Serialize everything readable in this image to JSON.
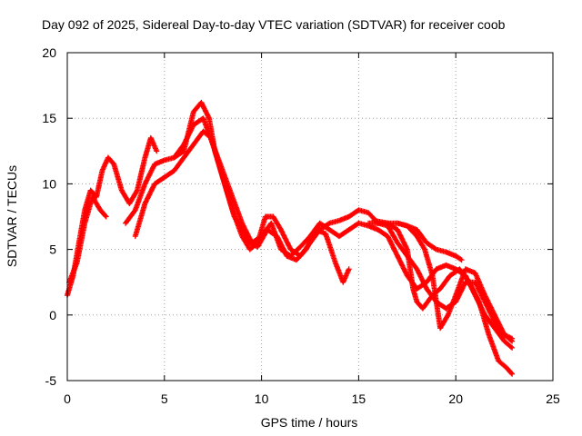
{
  "chart_data": {
    "type": "scatter",
    "title": "Day 092 of 2025, Sidereal Day-to-day VTEC variation (SDTVAR) for receiver coob",
    "xlabel": "GPS time / hours",
    "ylabel": "SDTVAR / TECUs",
    "xlim": [
      0,
      25
    ],
    "ylim": [
      -5,
      20
    ],
    "xticks": [
      0,
      5,
      10,
      15,
      20,
      25
    ],
    "yticks": [
      -5,
      0,
      5,
      10,
      15,
      20
    ],
    "grid": true,
    "marker": "+",
    "series_color": "#ff0000",
    "series": [
      {
        "name": "track-1",
        "points": [
          [
            0.0,
            1.5
          ],
          [
            0.3,
            3.0
          ],
          [
            0.6,
            5.5
          ],
          [
            0.9,
            8.0
          ],
          [
            1.2,
            9.5
          ],
          [
            1.5,
            9.0
          ],
          [
            1.8,
            11.0
          ],
          [
            2.1,
            12.0
          ],
          [
            2.4,
            11.5
          ],
          [
            2.8,
            9.5
          ],
          [
            3.2,
            8.5
          ],
          [
            3.6,
            9.5
          ],
          [
            4.0,
            12.0
          ],
          [
            4.3,
            13.5
          ],
          [
            4.6,
            12.5
          ]
        ]
      },
      {
        "name": "track-2",
        "points": [
          [
            0.1,
            2.5
          ],
          [
            0.5,
            4.0
          ],
          [
            0.9,
            7.0
          ],
          [
            1.3,
            9.0
          ],
          [
            1.7,
            8.0
          ],
          [
            2.0,
            7.5
          ]
        ]
      },
      {
        "name": "track-3",
        "points": [
          [
            3.0,
            7.0
          ],
          [
            3.5,
            8.0
          ],
          [
            4.0,
            10.0
          ],
          [
            4.5,
            11.5
          ],
          [
            5.0,
            11.8
          ],
          [
            5.5,
            12.0
          ],
          [
            6.0,
            12.5
          ],
          [
            6.5,
            15.5
          ],
          [
            6.9,
            16.2
          ],
          [
            7.3,
            15.0
          ],
          [
            7.6,
            12.5
          ],
          [
            8.0,
            10.5
          ],
          [
            8.5,
            8.0
          ],
          [
            9.0,
            6.0
          ],
          [
            9.4,
            5.0
          ],
          [
            9.8,
            5.5
          ],
          [
            10.2,
            7.5
          ],
          [
            10.6,
            7.5
          ],
          [
            11.0,
            6.5
          ],
          [
            11.5,
            5.0
          ],
          [
            12.0,
            4.5
          ],
          [
            12.5,
            5.5
          ],
          [
            13.0,
            6.5
          ],
          [
            13.5,
            7.0
          ],
          [
            14.0,
            7.2
          ],
          [
            14.5,
            7.5
          ],
          [
            15.0,
            8.0
          ],
          [
            15.5,
            7.8
          ],
          [
            16.0,
            7.0
          ],
          [
            16.5,
            7.0
          ],
          [
            17.0,
            7.0
          ],
          [
            17.5,
            6.8
          ],
          [
            18.0,
            6.5
          ],
          [
            18.5,
            5.5
          ],
          [
            19.0,
            5.0
          ],
          [
            19.5,
            4.8
          ],
          [
            20.0,
            4.5
          ],
          [
            20.3,
            4.2
          ]
        ]
      },
      {
        "name": "track-4",
        "points": [
          [
            3.5,
            6.0
          ],
          [
            4.0,
            8.5
          ],
          [
            4.5,
            10.0
          ],
          [
            5.0,
            10.5
          ],
          [
            5.5,
            11.0
          ],
          [
            6.0,
            12.0
          ],
          [
            6.5,
            13.0
          ],
          [
            7.0,
            14.0
          ],
          [
            7.4,
            13.5
          ],
          [
            7.8,
            11.5
          ],
          [
            8.2,
            9.5
          ],
          [
            8.6,
            7.5
          ],
          [
            9.0,
            6.5
          ],
          [
            9.4,
            5.5
          ],
          [
            9.8,
            5.2
          ],
          [
            10.3,
            6.5
          ],
          [
            10.8,
            6.0
          ],
          [
            11.3,
            4.5
          ],
          [
            11.8,
            4.2
          ],
          [
            12.3,
            5.0
          ],
          [
            12.8,
            6.5
          ],
          [
            13.3,
            6.2
          ],
          [
            13.8,
            4.0
          ],
          [
            14.2,
            2.5
          ],
          [
            14.5,
            3.5
          ]
        ]
      },
      {
        "name": "track-5",
        "points": [
          [
            5.5,
            12.0
          ],
          [
            6.0,
            13.0
          ],
          [
            6.5,
            14.5
          ],
          [
            7.0,
            15.0
          ],
          [
            7.5,
            13.0
          ],
          [
            8.0,
            11.0
          ],
          [
            8.5,
            9.0
          ],
          [
            9.0,
            7.0
          ],
          [
            9.5,
            5.5
          ],
          [
            10.0,
            6.0
          ],
          [
            10.5,
            7.0
          ],
          [
            11.0,
            5.0
          ],
          [
            11.5,
            4.5
          ],
          [
            12.0,
            5.2
          ],
          [
            12.5,
            6.0
          ],
          [
            13.0,
            7.0
          ],
          [
            13.5,
            6.5
          ],
          [
            14.0,
            6.0
          ],
          [
            14.5,
            6.5
          ],
          [
            15.0,
            7.0
          ],
          [
            15.5,
            6.8
          ],
          [
            16.0,
            6.5
          ],
          [
            16.5,
            6.0
          ],
          [
            17.0,
            4.5
          ],
          [
            17.5,
            3.0
          ],
          [
            18.0,
            2.0
          ],
          [
            18.5,
            2.5
          ],
          [
            19.0,
            3.5
          ],
          [
            19.5,
            3.8
          ],
          [
            20.0,
            3.5
          ],
          [
            20.5,
            3.0
          ],
          [
            21.0,
            1.5
          ],
          [
            21.5,
            0.0
          ],
          [
            22.0,
            -1.0
          ],
          [
            22.5,
            -2.0
          ],
          [
            22.9,
            -2.5
          ]
        ]
      },
      {
        "name": "track-6",
        "points": [
          [
            15.5,
            7.0
          ],
          [
            16.0,
            7.0
          ],
          [
            16.5,
            6.8
          ],
          [
            17.0,
            5.5
          ],
          [
            17.5,
            4.5
          ],
          [
            18.0,
            3.5
          ],
          [
            18.5,
            2.0
          ],
          [
            19.0,
            1.0
          ],
          [
            19.5,
            0.5
          ],
          [
            20.0,
            1.0
          ],
          [
            20.5,
            2.5
          ],
          [
            21.0,
            2.5
          ],
          [
            21.5,
            1.0
          ],
          [
            22.0,
            -0.5
          ],
          [
            22.5,
            -1.5
          ],
          [
            22.9,
            -2.0
          ]
        ]
      },
      {
        "name": "track-7",
        "points": [
          [
            15.8,
            7.2
          ],
          [
            16.5,
            7.0
          ],
          [
            17.0,
            6.5
          ],
          [
            17.5,
            5.0
          ],
          [
            17.8,
            2.0
          ],
          [
            18.0,
            1.0
          ],
          [
            18.3,
            0.5
          ],
          [
            18.8,
            1.5
          ],
          [
            19.2,
            2.0
          ],
          [
            19.7,
            3.0
          ],
          [
            20.2,
            3.5
          ],
          [
            20.7,
            2.5
          ],
          [
            21.2,
            1.0
          ],
          [
            21.7,
            -1.5
          ],
          [
            22.2,
            -3.5
          ],
          [
            22.6,
            -4.0
          ],
          [
            22.9,
            -4.5
          ]
        ]
      },
      {
        "name": "track-8",
        "points": [
          [
            17.0,
            7.0
          ],
          [
            17.5,
            6.8
          ],
          [
            18.0,
            6.0
          ],
          [
            18.4,
            5.0
          ],
          [
            18.8,
            3.0
          ],
          [
            19.2,
            -1.0
          ],
          [
            19.6,
            0.0
          ],
          [
            20.0,
            1.5
          ],
          [
            20.5,
            3.5
          ],
          [
            21.0,
            3.2
          ],
          [
            21.5,
            1.5
          ],
          [
            22.0,
            0.0
          ],
          [
            22.5,
            -1.5
          ],
          [
            22.9,
            -1.8
          ]
        ]
      }
    ]
  }
}
